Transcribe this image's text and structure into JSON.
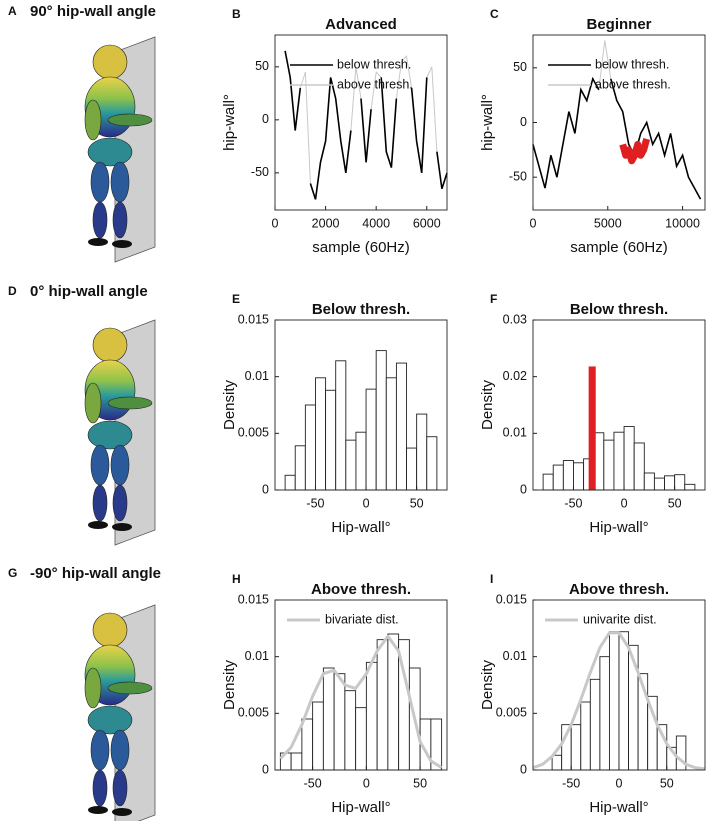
{
  "figures": [
    {
      "panel": "A",
      "title": "90° hip-wall angle"
    },
    {
      "panel": "D",
      "title": "0° hip-wall angle"
    },
    {
      "panel": "G",
      "title": "-90° hip-wall angle"
    }
  ],
  "chart_data": [
    {
      "type": "line",
      "panel": "B",
      "title": "Advanced",
      "x_label": "sample (60Hz)",
      "y_label": "hip-wall°",
      "x": [
        400,
        600,
        800,
        1000,
        1200,
        1400,
        1600,
        1800,
        2000,
        2200,
        2400,
        2600,
        2800,
        3000,
        3200,
        3400,
        3600,
        3800,
        4000,
        4200,
        4400,
        4600,
        4800,
        5000,
        5200,
        5400,
        5600,
        5800,
        6000,
        6200,
        6400,
        6600,
        6800
      ],
      "series": [
        {
          "name": "below thresh.",
          "color": "#000000",
          "values": [
            65,
            40,
            -10,
            30,
            null,
            -60,
            -75,
            -40,
            -20,
            40,
            20,
            -20,
            -50,
            -10,
            null,
            20,
            -40,
            10,
            null,
            40,
            -30,
            -45,
            20,
            null,
            null,
            30,
            -20,
            -50,
            40,
            null,
            -30,
            -65,
            -50
          ]
        },
        {
          "name": "above thresh.",
          "color": "#c8c8c8",
          "values": [
            65,
            40,
            -10,
            30,
            45,
            -60,
            -75,
            -40,
            -20,
            40,
            20,
            -20,
            -50,
            -10,
            50,
            20,
            -40,
            10,
            45,
            40,
            -30,
            -45,
            20,
            55,
            60,
            30,
            -20,
            -50,
            40,
            50,
            -30,
            -65,
            -50
          ]
        }
      ],
      "xlim": [
        0,
        6800
      ],
      "ylim": [
        -85,
        80
      ],
      "xticks": [
        0,
        2000,
        4000,
        6000
      ],
      "yticks": [
        -50,
        0,
        50
      ]
    },
    {
      "type": "line",
      "panel": "C",
      "title": "Beginner",
      "x_label": "sample (60Hz)",
      "y_label": "hip-wall°",
      "x": [
        0,
        400,
        800,
        1200,
        1600,
        2000,
        2400,
        2800,
        3200,
        3600,
        4000,
        4400,
        4800,
        5200,
        5600,
        6000,
        6400,
        6800,
        7200,
        7600,
        8000,
        8400,
        8800,
        9200,
        9600,
        10000,
        10400,
        10800,
        11200
      ],
      "series": [
        {
          "name": "below thresh.",
          "color": "#000000",
          "values": [
            -20,
            -40,
            -60,
            -30,
            -50,
            -20,
            10,
            -10,
            30,
            20,
            40,
            30,
            null,
            40,
            20,
            10,
            -20,
            -30,
            -10,
            0,
            -20,
            -10,
            -30,
            -10,
            -40,
            -30,
            -50,
            -60,
            -70
          ]
        },
        {
          "name": "above thresh.",
          "color": "#c8c8c8",
          "values": [
            -20,
            -40,
            -60,
            -30,
            -50,
            -20,
            10,
            -10,
            30,
            20,
            40,
            30,
            75,
            40,
            20,
            10,
            -20,
            -30,
            -10,
            0,
            -20,
            -10,
            -30,
            -10,
            -40,
            -30,
            -50,
            -60,
            -70
          ]
        }
      ],
      "highlight": {
        "color": "#e02020",
        "x": [
          6000,
          6200,
          6400,
          6600,
          6800,
          7000,
          7200,
          7400,
          7600
        ],
        "values": [
          -20,
          -30,
          -25,
          -35,
          -30,
          -20,
          -30,
          -25,
          -15
        ]
      },
      "xlim": [
        0,
        11500
      ],
      "ylim": [
        -80,
        80
      ],
      "xticks": [
        0,
        5000,
        10000
      ],
      "yticks": [
        -50,
        0,
        50
      ]
    },
    {
      "type": "histogram",
      "panel": "E",
      "title": "Below thresh.",
      "x_label": "Hip-wall°",
      "y_label": "Density",
      "bins": [
        -80,
        -70,
        -60,
        -50,
        -40,
        -30,
        -20,
        -10,
        0,
        10,
        20,
        30,
        40,
        50,
        60,
        70
      ],
      "values": [
        0.0013,
        0.0039,
        0.0075,
        0.0099,
        0.0088,
        0.0114,
        0.0044,
        0.0051,
        0.0089,
        0.0123,
        0.0099,
        0.0112,
        0.0037,
        0.0067,
        0.0047
      ],
      "color": "#ffffff",
      "xlim": [
        -90,
        80
      ],
      "ylim": [
        0,
        0.015
      ],
      "xticks": [
        -50,
        0,
        50
      ],
      "yticks": [
        0,
        0.005,
        0.01,
        0.015
      ]
    },
    {
      "type": "histogram",
      "panel": "F",
      "title": "Below thresh.",
      "x_label": "Hip-wall°",
      "y_label": "Density",
      "bins": [
        -80,
        -70,
        -60,
        -50,
        -40,
        -30,
        -20,
        -10,
        0,
        10,
        20,
        30,
        40,
        50,
        60,
        70
      ],
      "values": [
        0.0028,
        0.0044,
        0.0052,
        0.0048,
        0.0055,
        0.0101,
        0.0088,
        0.0102,
        0.0112,
        0.0083,
        0.003,
        0.0021,
        0.0025,
        0.0027,
        0.001
      ],
      "highlight": {
        "color": "#e02020",
        "bins": [
          -35,
          -28
        ],
        "values": [
          0.0218
        ]
      },
      "color": "#ffffff",
      "xlim": [
        -90,
        80
      ],
      "ylim": [
        0,
        0.03
      ],
      "xticks": [
        -50,
        0,
        50
      ],
      "yticks": [
        0,
        0.01,
        0.02,
        0.03
      ]
    },
    {
      "type": "histogram",
      "panel": "H",
      "title": "Above thresh.",
      "x_label": "Hip-wall°",
      "y_label": "Density",
      "bins": [
        -80,
        -70,
        -60,
        -50,
        -40,
        -30,
        -20,
        -10,
        0,
        10,
        20,
        30,
        40,
        50,
        60,
        70
      ],
      "values": [
        0.0015,
        0.0015,
        0.0045,
        0.006,
        0.009,
        0.0085,
        0.007,
        0.0055,
        0.0095,
        0.0115,
        0.012,
        0.0115,
        0.009,
        0.0045,
        0.0045
      ],
      "curve": {
        "name": "bivariate dist.",
        "color": "#c8c8c8",
        "x": [
          -80,
          -70,
          -60,
          -50,
          -40,
          -30,
          -20,
          -10,
          0,
          10,
          20,
          30,
          40,
          50,
          60,
          70
        ],
        "values": [
          0.001,
          0.002,
          0.004,
          0.0065,
          0.0085,
          0.0088,
          0.0075,
          0.0072,
          0.0085,
          0.0105,
          0.0118,
          0.0105,
          0.0065,
          0.0025,
          0.0008,
          0.0002
        ]
      },
      "color": "#ffffff",
      "xlim": [
        -85,
        75
      ],
      "ylim": [
        0,
        0.015
      ],
      "xticks": [
        -50,
        0,
        50
      ],
      "yticks": [
        0,
        0.005,
        0.01,
        0.015
      ]
    },
    {
      "type": "histogram",
      "panel": "I",
      "title": "Above thresh.",
      "x_label": "Hip-wall°",
      "y_label": "Density",
      "bins": [
        -70,
        -60,
        -50,
        -40,
        -30,
        -20,
        -10,
        0,
        10,
        20,
        30,
        40,
        50,
        60,
        70
      ],
      "values": [
        0.0013,
        0.004,
        0.004,
        0.006,
        0.008,
        0.01,
        0.0122,
        0.0122,
        0.011,
        0.0085,
        0.0065,
        0.004,
        0.002,
        0.003
      ],
      "curve": {
        "name": "univarite dist.",
        "color": "#c8c8c8",
        "x": [
          -90,
          -80,
          -70,
          -60,
          -50,
          -40,
          -30,
          -20,
          -10,
          0,
          10,
          20,
          30,
          40,
          50,
          60,
          70,
          80,
          90
        ],
        "values": [
          0.0002,
          0.0005,
          0.0012,
          0.0023,
          0.004,
          0.0062,
          0.0086,
          0.0108,
          0.0121,
          0.0121,
          0.0108,
          0.0086,
          0.0062,
          0.004,
          0.0023,
          0.0012,
          0.0005,
          0.0002,
          0.0001
        ]
      },
      "color": "#ffffff",
      "xlim": [
        -90,
        90
      ],
      "ylim": [
        0,
        0.015
      ],
      "xticks": [
        -50,
        0,
        50
      ],
      "yticks": [
        0,
        0.005,
        0.01,
        0.015
      ]
    }
  ]
}
